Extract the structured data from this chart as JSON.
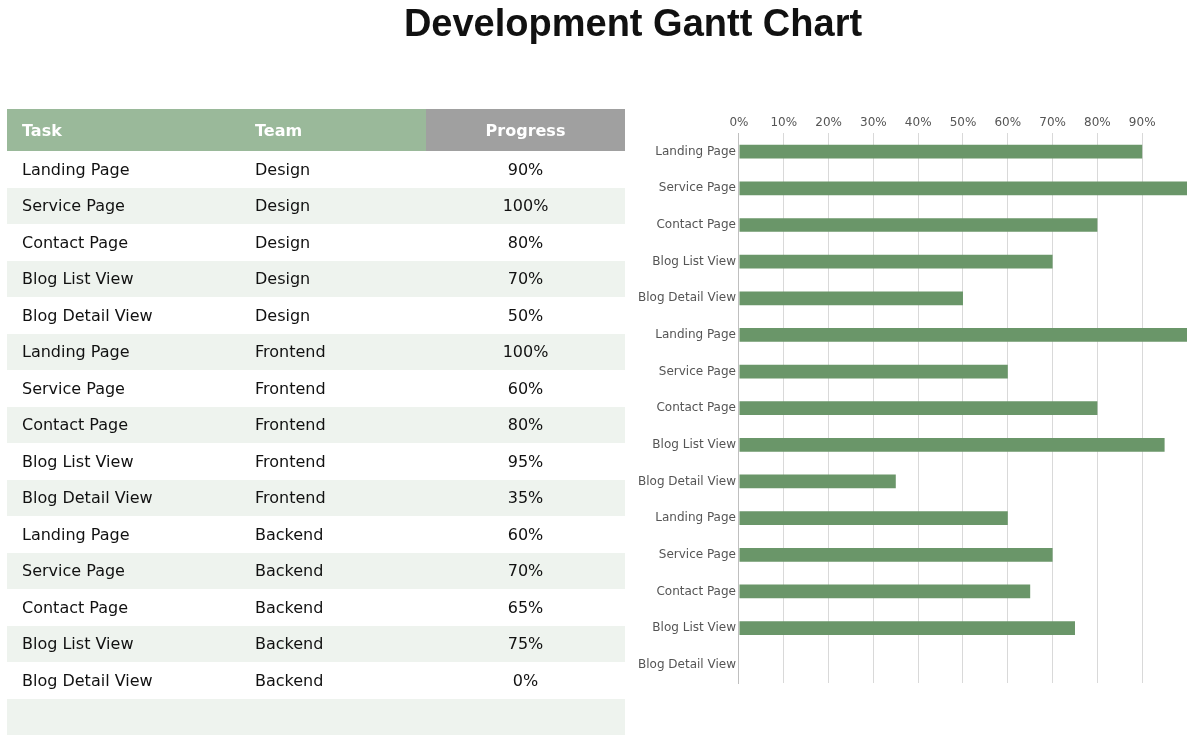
{
  "chart_data": {
    "type": "bar",
    "orientation": "horizontal",
    "title": "Development Gantt Chart",
    "annotations": [
      "Task",
      "Team",
      "Progress"
    ],
    "categories": [
      "Landing Page",
      "Service Page",
      "Contact Page",
      "Blog List View",
      "Blog Detail View",
      "Landing Page",
      "Service Page",
      "Contact Page",
      "Blog List View",
      "Blog Detail View",
      "Landing Page",
      "Service Page",
      "Contact Page",
      "Blog List View",
      "Blog Detail View"
    ],
    "y2_categories": [
      "Design",
      "Design",
      "Design",
      "Design",
      "Design",
      "Frontend",
      "Frontend",
      "Frontend",
      "Frontend",
      "Frontend",
      "Backend",
      "Backend",
      "Backend",
      "Backend",
      "Backend"
    ],
    "values": [
      90,
      100,
      80,
      70,
      50,
      100,
      60,
      80,
      95,
      35,
      60,
      70,
      65,
      75,
      0
    ],
    "value_labels": [
      "90%",
      "100%",
      "80%",
      "70%",
      "50%",
      "100%",
      "60%",
      "80%",
      "95%",
      "35%",
      "60%",
      "70%",
      "65%",
      "75%",
      "0%"
    ],
    "color": "#6a9669",
    "xlim": [
      0,
      100
    ],
    "xticks": [
      {
        "value": 0,
        "label": "0%"
      },
      {
        "value": 10,
        "label": "10%"
      },
      {
        "value": 20,
        "label": "20%"
      },
      {
        "value": 30,
        "label": "30%"
      },
      {
        "value": 40,
        "label": "40%"
      },
      {
        "value": 50,
        "label": "50%"
      },
      {
        "value": 60,
        "label": "60%"
      },
      {
        "value": 70,
        "label": "70%"
      },
      {
        "value": 80,
        "label": "80%"
      },
      {
        "value": 90,
        "label": "90%"
      }
    ],
    "grid": "x"
  }
}
